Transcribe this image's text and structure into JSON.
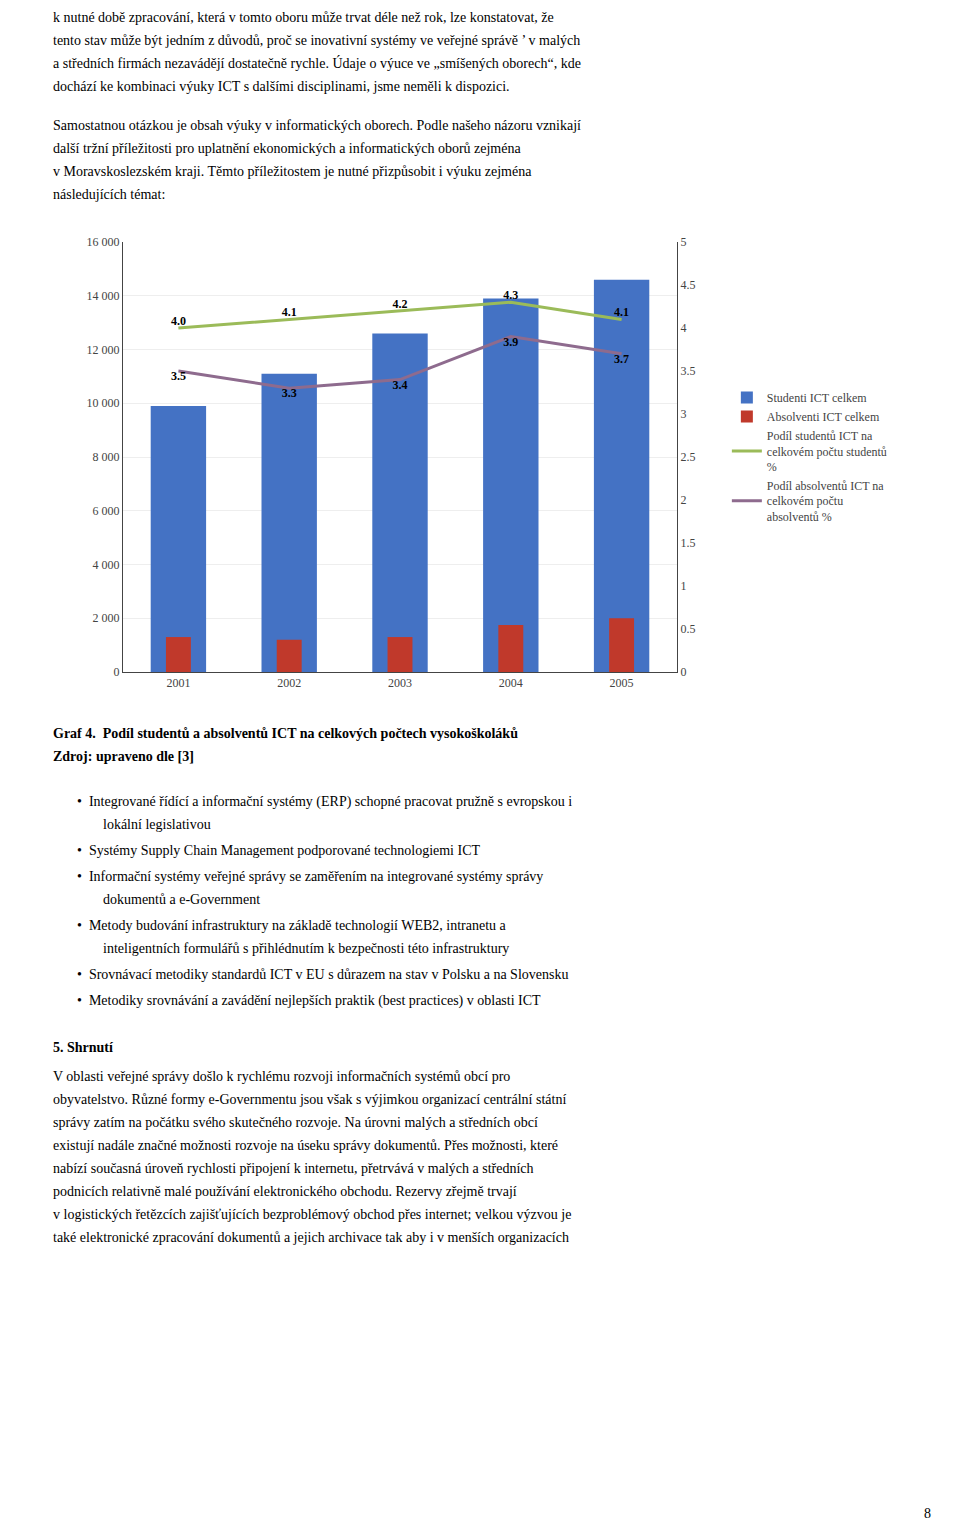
{
  "chart_data": {
    "type": "bar",
    "title": "Graf 4.  Podíl studentů a absolventů ICT na celkových počtech vysokoškoláků",
    "subtitle": "Zdroj: upraveno dle [3]",
    "categories": [
      "2001",
      "2002",
      "2003",
      "2004",
      "2005"
    ],
    "series": [
      {
        "name": "Studenti ICT celkem",
        "type": "bar",
        "color": "#4472C4",
        "values": [
          9900,
          11100,
          12600,
          13900,
          14600
        ]
      },
      {
        "name": "Absolventi ICT celkem",
        "type": "bar",
        "color": "#C0392B",
        "values": [
          1300,
          1200,
          1300,
          1750,
          2000
        ]
      },
      {
        "name": "Podíl studentů ICT na\ncelkovém počtu studentů\n%",
        "type": "line",
        "axis": "y2",
        "color": "#9BBB59",
        "data_labels": true,
        "values": [
          4.0,
          4.1,
          4.2,
          4.3,
          4.1
        ],
        "value_labels": [
          "4.0",
          "4.1",
          "4.2",
          "4.3",
          "4.1"
        ]
      },
      {
        "name": "Podíl absolventů ICT na\ncelkovém počtu\nabsolventů %",
        "type": "line",
        "axis": "y2",
        "color": "#8E6B8E",
        "data_labels": true,
        "values": [
          3.5,
          3.3,
          3.4,
          3.9,
          3.7
        ],
        "value_labels": [
          "3.5",
          "3.3",
          "3.4",
          "3.9",
          "3.7"
        ]
      }
    ],
    "ylim": [
      0,
      16000
    ],
    "yticks": [
      0,
      {
        "value": 2000,
        "label": "2 000"
      },
      {
        "value": 4000,
        "label": "4 000"
      },
      {
        "value": 6000,
        "label": "6 000"
      },
      {
        "value": 8000,
        "label": "8 000"
      },
      {
        "value": 10000,
        "label": "10 000"
      },
      {
        "value": 12000,
        "label": "12 000"
      },
      {
        "value": 14000,
        "label": "14 000"
      },
      {
        "value": 16000,
        "label": "16 000"
      }
    ],
    "y2lim": [
      0,
      5
    ],
    "y2ticks": [
      0,
      0.5,
      1,
      1.5,
      2,
      2.5,
      3,
      3.5,
      4,
      4.5,
      5
    ],
    "grid": true,
    "legend": "right",
    "annotations": [
      "k nutné době zpracování, která v tomto oboru může trvat déle než rok, lze konstatovat, že\ntento stav může být jedním z důvodů, proč se inovativní systémy ve veřejné správě ’ v malých\na středních firmách nezavádějí dostatečně rychle. Údaje o výuce ve „smíšených oborech“, kde\ndochází ke kombinaci výuky ICT s dalšími disciplinami, jsme neměli k dispozici.",
      "Samostatnou otázkou je obsah výuky v informatických oborech. Podle našeho názoru vznikají\ndalší tržní příležitosti pro uplatnění ekonomických a informatických oborů zejména\nv Moravskoslezském kraji. Těmto příležitostem je nutné přizpůsobit i výuku zejména\nnásledujících témat:",
      "•  Integrované řídící a informační systémy (ERP) schopné pracovat pružně s evropskou i\nlokální legislativou",
      "•  Systémy Supply Chain Management podporované technologiemi ICT",
      "•  Informační systémy veřejné správy se zaměřením na integrované systémy správy\ndokumentů a e-Government",
      "•  Metody budování infrastruktury na základě technologií WEB2, intranetu a\ninteligentních formulářů s přihlédnutím k bezpečnosti této infrastruktury",
      "•  Srovnávací metodiky standardů ICT v EU s důrazem na stav v Polsku a na Slovensku",
      "•  Metodiky srovnávání a zavádění nejlepších praktik (best practices) v oblasti ICT",
      "5. Shrnutí",
      "V oblasti veřejné správy došlo k rychlému rozvoji informačních systémů obcí pro\nobyvatelstvo. Různé formy e-Governmentu jsou však s výjimkou organizací centrální státní\nsprávy zatím na počátku svého skutečného rozvoje. Na úrovni malých a středních obcí\nexistují nadále značné možnosti rozvoje na úseku správy dokumentů. Přes možnosti, které\nnabízí současná úroveň rychlosti připojení k internetu, přetrvává v malých a středních\npodnicích relativně malé používání elektronického obchodu. Rezervy zřejmě trvají\nv logistických řetězcích zajišťujících bezproblémový obchod přes internet; velkou výzvou je\ntaké elektronické zpracování dokumentů a jejich archivace tak aby i v menších organizacích",
      "8"
    ]
  }
}
